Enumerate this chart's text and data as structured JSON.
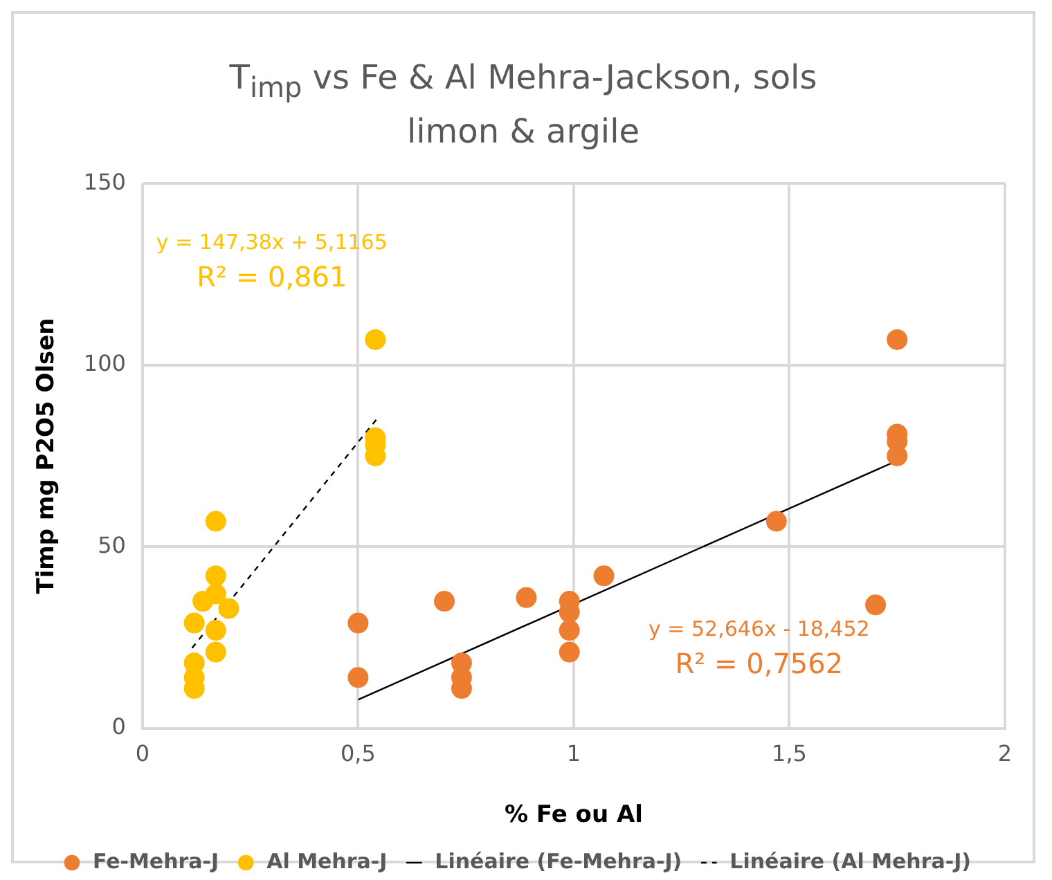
{
  "chart_data": {
    "type": "scatter",
    "title": "T$_{imp}$ vs Fe & Al Mehra-Jackson, sols limon & argile",
    "xlabel": "% Fe ou Al",
    "ylabel": "Timp mg P2O5 Olsen",
    "xlim": [
      0,
      2
    ],
    "xticks": [
      0,
      {
        "value": 0.5,
        "label": "0,5"
      },
      1,
      {
        "value": 1.5,
        "label": "1,5"
      },
      2
    ],
    "ylim": [
      0,
      150
    ],
    "yticks": [
      0,
      50,
      100,
      150
    ],
    "grid": true,
    "legend": "bottom",
    "marker": "circle",
    "series": [
      {
        "name": "Fe-Mehra-J",
        "color": "#ed7d31",
        "x": [
          0.5,
          0.5,
          0.7,
          0.74,
          0.74,
          0.74,
          0.89,
          0.99,
          0.99,
          0.99,
          0.99,
          1.07,
          1.47,
          1.7,
          1.75,
          1.75,
          1.75,
          1.75
        ],
        "values": [
          29,
          14,
          35,
          18,
          14,
          11,
          36,
          35,
          32,
          27,
          21,
          42,
          57,
          34,
          107,
          81,
          79,
          75
        ]
      },
      {
        "name": "Al Mehra-J",
        "color": "#ffc000",
        "x": [
          0.54,
          0.54,
          0.54,
          0.54,
          0.17,
          0.17,
          0.14,
          0.17,
          0.2,
          0.12,
          0.17,
          0.17,
          0.12,
          0.12,
          0.12
        ],
        "values": [
          107,
          80,
          78,
          75,
          57,
          42,
          35,
          37,
          33,
          29,
          27,
          21,
          18,
          14,
          11
        ]
      },
      {
        "name": "Linéaire (Fe-Mehra-J)",
        "type": "line",
        "color": "#000000",
        "line_style": "solid",
        "marker": "none",
        "x": [
          0.5,
          1.75
        ],
        "values": [
          7.9,
          73.7
        ]
      },
      {
        "name": "Linéaire (Al Mehra-J)",
        "type": "line",
        "color": "#000000",
        "line_style": "dashed",
        "marker": "none",
        "x": [
          0.115,
          0.545
        ],
        "values": [
          22.1,
          85.4
        ]
      }
    ],
    "annotations": [
      "y = 52,646x - 18,452\nR² = 0,7562",
      "y = 147,38x + 5,1165\nR² = 0,861"
    ]
  }
}
